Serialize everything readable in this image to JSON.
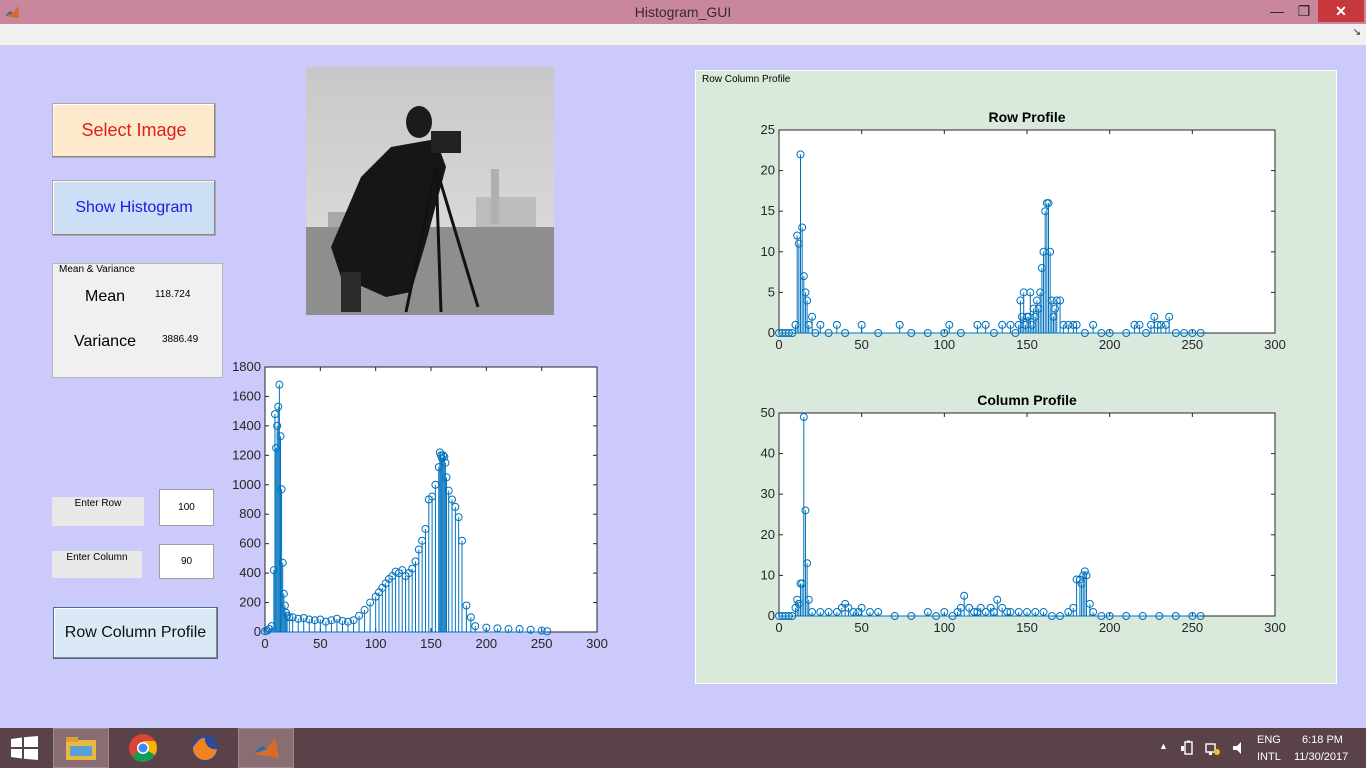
{
  "window": {
    "title": "Histogram_GUI",
    "min_glyph": "—",
    "max_glyph": "❐",
    "close_glyph": "✕",
    "dock_glyph": "↘"
  },
  "buttons": {
    "select_image": "Select Image",
    "show_histogram": "Show Histogram",
    "row_column_profile": "Row Column Profile"
  },
  "mean_variance": {
    "title": "Mean & Variance",
    "mean_label": "Mean",
    "mean_value": "118.724",
    "variance_label": "Variance",
    "variance_value": "3886.49"
  },
  "inputs": {
    "row_label": "Enter Row",
    "row_value": "100",
    "column_label": "Enter Column",
    "column_value": "90"
  },
  "panel": {
    "title": "Row Column Profile"
  },
  "colors": {
    "stem": "#0072bd",
    "bg": "#cbcafb",
    "panel": "#d9e9dc"
  },
  "chart_data": [
    {
      "type": "stem",
      "title": "",
      "xlim": [
        0,
        300
      ],
      "ylim": [
        0,
        1800
      ],
      "xticks": [
        0,
        50,
        100,
        150,
        200,
        250,
        300
      ],
      "yticks": [
        0,
        200,
        400,
        600,
        800,
        1000,
        1200,
        1400,
        1600,
        1800
      ],
      "x": [
        0,
        2,
        4,
        6,
        8,
        9,
        10,
        11,
        12,
        13,
        14,
        15,
        16,
        17,
        18,
        19,
        20,
        22,
        25,
        30,
        35,
        40,
        45,
        50,
        55,
        60,
        65,
        70,
        75,
        80,
        85,
        90,
        95,
        100,
        103,
        106,
        109,
        112,
        115,
        118,
        121,
        124,
        127,
        130,
        133,
        136,
        139,
        142,
        145,
        148,
        151,
        154,
        157,
        158,
        159,
        160,
        161,
        162,
        163,
        164,
        166,
        169,
        172,
        175,
        178,
        182,
        186,
        190,
        200,
        210,
        220,
        230,
        240,
        250,
        255
      ],
      "values": [
        5,
        10,
        20,
        40,
        420,
        1480,
        1250,
        1400,
        1530,
        1680,
        1330,
        970,
        470,
        260,
        180,
        130,
        110,
        100,
        100,
        90,
        95,
        85,
        80,
        85,
        70,
        80,
        90,
        75,
        70,
        80,
        110,
        150,
        200,
        240,
        270,
        300,
        330,
        360,
        380,
        410,
        400,
        420,
        380,
        400,
        430,
        480,
        560,
        620,
        700,
        900,
        920,
        1000,
        1120,
        1220,
        1200,
        1180,
        1200,
        1190,
        1150,
        1050,
        960,
        900,
        850,
        780,
        620,
        180,
        100,
        40,
        30,
        25,
        20,
        20,
        15,
        10,
        5
      ]
    },
    {
      "type": "stem",
      "title": "Row Profile",
      "xlim": [
        0,
        300
      ],
      "ylim": [
        0,
        25
      ],
      "xticks": [
        0,
        50,
        100,
        150,
        200,
        250,
        300
      ],
      "yticks": [
        0,
        5,
        10,
        15,
        20,
        25
      ],
      "x": [
        0,
        2,
        4,
        6,
        8,
        10,
        11,
        12,
        13,
        14,
        15,
        16,
        17,
        18,
        20,
        22,
        25,
        30,
        35,
        40,
        50,
        60,
        73,
        80,
        90,
        100,
        103,
        110,
        120,
        125,
        130,
        135,
        140,
        143,
        145,
        146,
        147,
        148,
        149,
        150,
        151,
        152,
        153,
        154,
        155,
        156,
        157,
        158,
        159,
        160,
        161,
        162,
        163,
        164,
        165,
        166,
        167,
        168,
        170,
        172,
        175,
        178,
        180,
        185,
        190,
        195,
        200,
        210,
        215,
        218,
        222,
        225,
        227,
        229,
        231,
        234,
        236,
        240,
        245,
        250,
        255
      ],
      "values": [
        0,
        0,
        0,
        0,
        0,
        1,
        12,
        11,
        22,
        13,
        7,
        5,
        4,
        1,
        2,
        0,
        1,
        0,
        1,
        0,
        1,
        0,
        1,
        0,
        0,
        0,
        1,
        0,
        1,
        1,
        0,
        1,
        1,
        0,
        1,
        4,
        2,
        5,
        1,
        2,
        2,
        5,
        1,
        3,
        2,
        4,
        3,
        5,
        8,
        10,
        15,
        16,
        16,
        10,
        4,
        2,
        3,
        4,
        4,
        1,
        1,
        1,
        1,
        0,
        1,
        0,
        0,
        0,
        1,
        1,
        0,
        1,
        2,
        1,
        1,
        1,
        2,
        0,
        0,
        0,
        0
      ]
    },
    {
      "type": "stem",
      "title": "Column Profile",
      "xlim": [
        0,
        300
      ],
      "ylim": [
        0,
        50
      ],
      "xticks": [
        0,
        50,
        100,
        150,
        200,
        250,
        300
      ],
      "yticks": [
        0,
        10,
        20,
        30,
        40,
        50
      ],
      "x": [
        0,
        2,
        4,
        6,
        8,
        10,
        11,
        12,
        13,
        14,
        15,
        16,
        17,
        18,
        20,
        25,
        30,
        35,
        38,
        40,
        42,
        45,
        48,
        50,
        55,
        60,
        70,
        80,
        90,
        95,
        100,
        105,
        108,
        110,
        112,
        115,
        118,
        120,
        122,
        125,
        128,
        130,
        132,
        135,
        138,
        140,
        145,
        150,
        155,
        160,
        165,
        170,
        175,
        178,
        180,
        182,
        183,
        184,
        185,
        186,
        188,
        190,
        195,
        200,
        210,
        220,
        230,
        240,
        250,
        255
      ],
      "values": [
        0,
        0,
        0,
        0,
        0,
        2,
        4,
        3,
        8,
        8,
        49,
        26,
        13,
        4,
        1,
        1,
        1,
        1,
        2,
        3,
        2,
        1,
        1,
        2,
        1,
        1,
        0,
        0,
        1,
        0,
        1,
        0,
        1,
        2,
        5,
        2,
        1,
        1,
        2,
        1,
        2,
        1,
        4,
        2,
        1,
        1,
        1,
        1,
        1,
        1,
        0,
        0,
        1,
        2,
        9,
        9,
        8,
        10,
        11,
        10,
        3,
        1,
        0,
        0,
        0,
        0,
        0,
        0,
        0,
        0
      ]
    }
  ],
  "taskbar": {
    "lang": "ENG",
    "layout": "INTL",
    "time": "6:18 PM",
    "date": "11/30/2017",
    "tray_up": "▲"
  }
}
